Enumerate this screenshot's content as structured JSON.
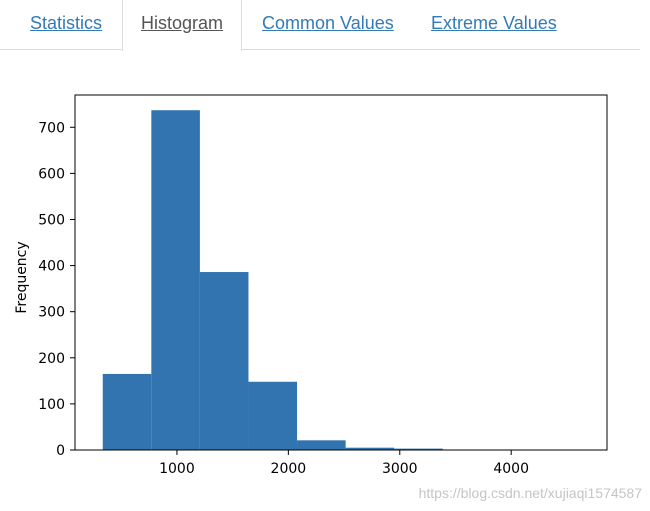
{
  "tabs": [
    {
      "label": "Statistics",
      "active": false
    },
    {
      "label": "Histogram",
      "active": true
    },
    {
      "label": "Common Values",
      "active": false
    },
    {
      "label": "Extreme Values",
      "active": false
    }
  ],
  "chart_data": {
    "type": "bar",
    "ylabel": "Frequency",
    "xlim": [
      85,
      4860
    ],
    "ylim": [
      0,
      770
    ],
    "xticks": [
      1000,
      2000,
      3000,
      4000
    ],
    "yticks": [
      0,
      100,
      200,
      300,
      400,
      500,
      600,
      700
    ],
    "bar_color": "#3274b0",
    "bins": [
      {
        "start": 334,
        "end": 770,
        "value": 165
      },
      {
        "start": 770,
        "end": 1206,
        "value": 737
      },
      {
        "start": 1206,
        "end": 1642,
        "value": 386
      },
      {
        "start": 1642,
        "end": 2078,
        "value": 148
      },
      {
        "start": 2078,
        "end": 2514,
        "value": 21
      },
      {
        "start": 2514,
        "end": 2950,
        "value": 5
      },
      {
        "start": 2950,
        "end": 3386,
        "value": 3
      },
      {
        "start": 3386,
        "end": 3822,
        "value": 0
      },
      {
        "start": 3822,
        "end": 4258,
        "value": 1
      },
      {
        "start": 4258,
        "end": 4694,
        "value": 1
      }
    ],
    "grid": false
  },
  "watermark": "https://blog.csdn.net/xujiaqi1574587"
}
